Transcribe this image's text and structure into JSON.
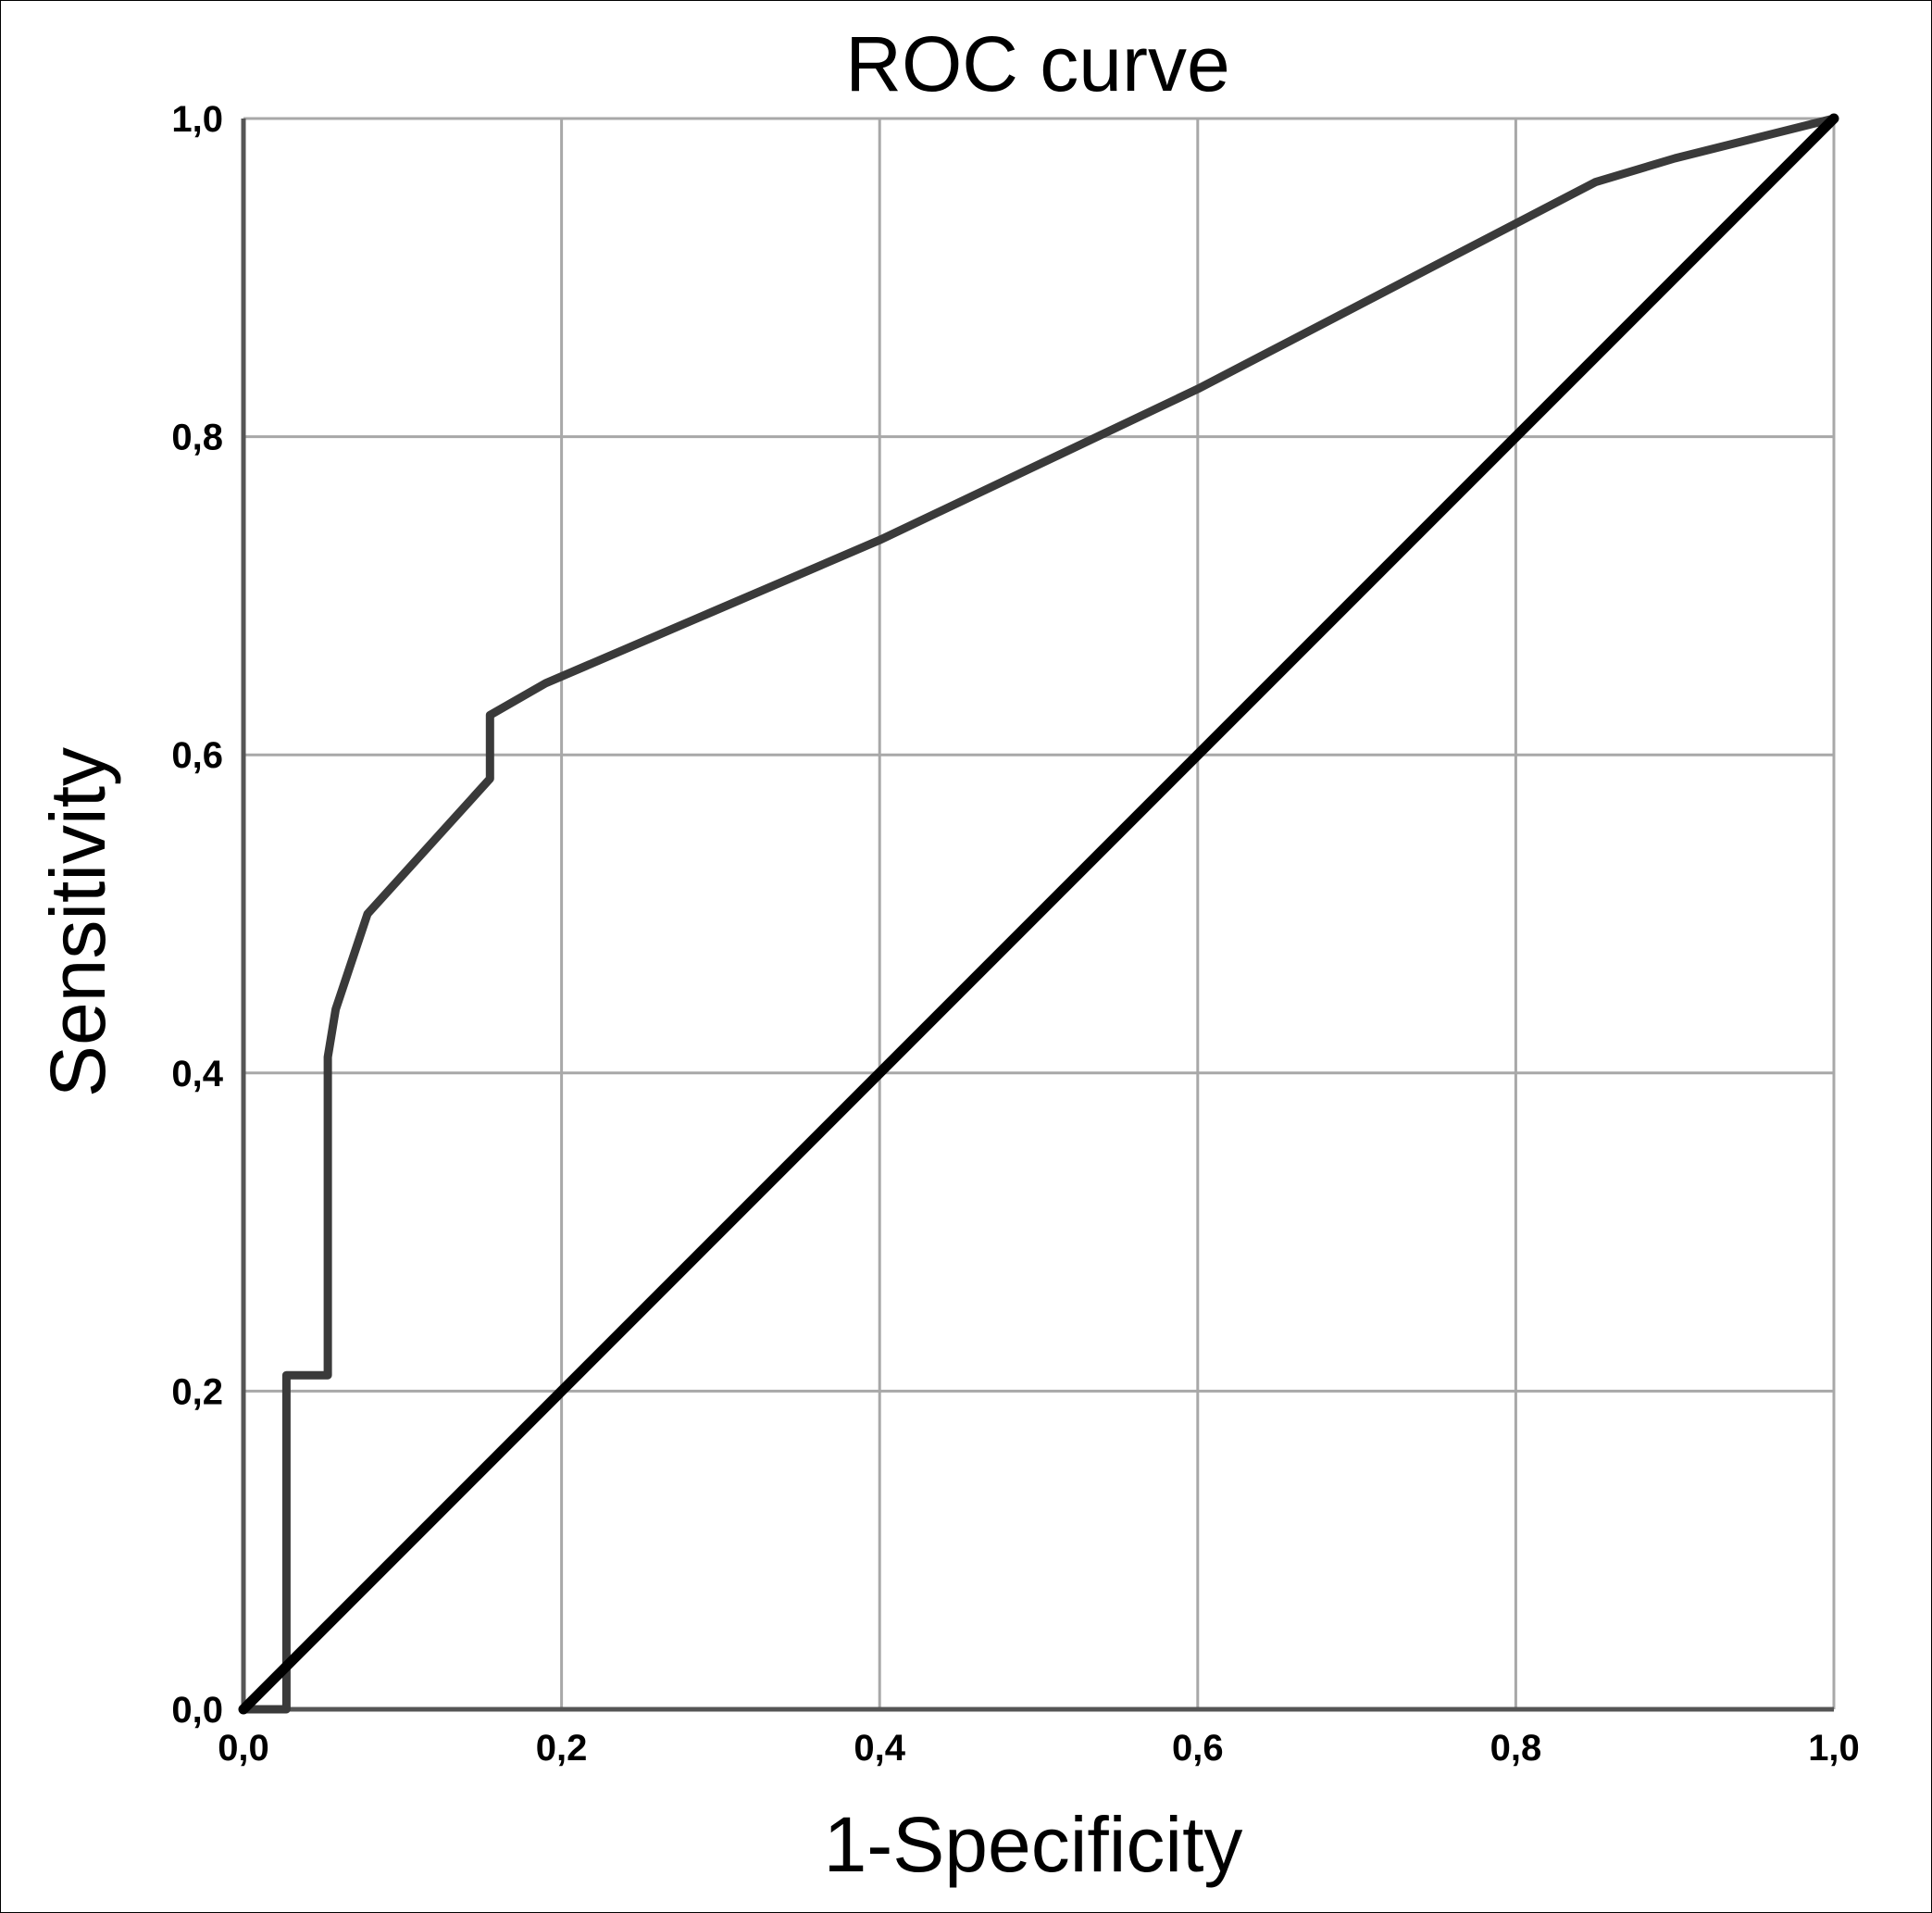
{
  "chart_data": {
    "type": "line",
    "title": "ROC curve",
    "xlabel": "1-Specificity",
    "ylabel": "Sensitivity",
    "xlim": [
      0,
      1
    ],
    "ylim": [
      0,
      1
    ],
    "x_ticks": [
      "0,0",
      "0,2",
      "0,4",
      "0,6",
      "0,8",
      "1,0"
    ],
    "y_ticks": [
      "0,0",
      "0,2",
      "0,4",
      "0,6",
      "0,8",
      "1,0"
    ],
    "grid": true,
    "legend": "none",
    "series": [
      {
        "points": [
          [
            0.0,
            0.0
          ],
          [
            0.027,
            0.0
          ],
          [
            0.027,
            0.21
          ],
          [
            0.053,
            0.21
          ],
          [
            0.053,
            0.41
          ],
          [
            0.058,
            0.44
          ],
          [
            0.078,
            0.5
          ],
          [
            0.155,
            0.585
          ],
          [
            0.155,
            0.625
          ],
          [
            0.19,
            0.645
          ],
          [
            0.4,
            0.735
          ],
          [
            0.6,
            0.83
          ],
          [
            0.85,
            0.96
          ],
          [
            0.9,
            0.975
          ],
          [
            1.0,
            1.0
          ]
        ],
        "color": "#3a3a3a"
      },
      {
        "points": [
          [
            0.0,
            0.0
          ],
          [
            1.0,
            1.0
          ]
        ],
        "color": "#000000"
      }
    ]
  }
}
